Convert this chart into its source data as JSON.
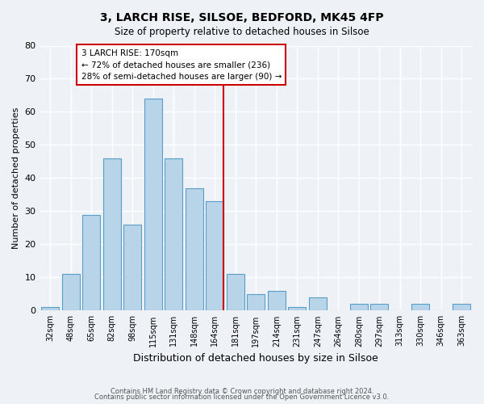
{
  "title": "3, LARCH RISE, SILSOE, BEDFORD, MK45 4FP",
  "subtitle": "Size of property relative to detached houses in Silsoe",
  "xlabel": "Distribution of detached houses by size in Silsoe",
  "ylabel": "Number of detached properties",
  "bar_labels": [
    "32sqm",
    "48sqm",
    "65sqm",
    "82sqm",
    "98sqm",
    "115sqm",
    "131sqm",
    "148sqm",
    "164sqm",
    "181sqm",
    "197sqm",
    "214sqm",
    "231sqm",
    "247sqm",
    "264sqm",
    "280sqm",
    "297sqm",
    "313sqm",
    "330sqm",
    "346sqm",
    "363sqm"
  ],
  "bar_values": [
    1,
    11,
    29,
    46,
    26,
    64,
    46,
    37,
    33,
    11,
    5,
    6,
    1,
    4,
    0,
    2,
    2,
    0,
    2,
    0,
    2
  ],
  "bar_color": "#b8d4e8",
  "bar_edge_color": "#5b9dc9",
  "highlight_line_color": "#cc0000",
  "annotation_title": "3 LARCH RISE: 170sqm",
  "annotation_line1": "← 72% of detached houses are smaller (236)",
  "annotation_line2": "28% of semi-detached houses are larger (90) →",
  "annotation_box_color": "#ffffff",
  "annotation_box_edge_color": "#cc0000",
  "ylim": [
    0,
    80
  ],
  "yticks": [
    0,
    10,
    20,
    30,
    40,
    50,
    60,
    70,
    80
  ],
  "footer1": "Contains HM Land Registry data © Crown copyright and database right 2024.",
  "footer2": "Contains public sector information licensed under the Open Government Licence v3.0.",
  "background_color": "#eef2f7",
  "grid_color": "#ffffff"
}
